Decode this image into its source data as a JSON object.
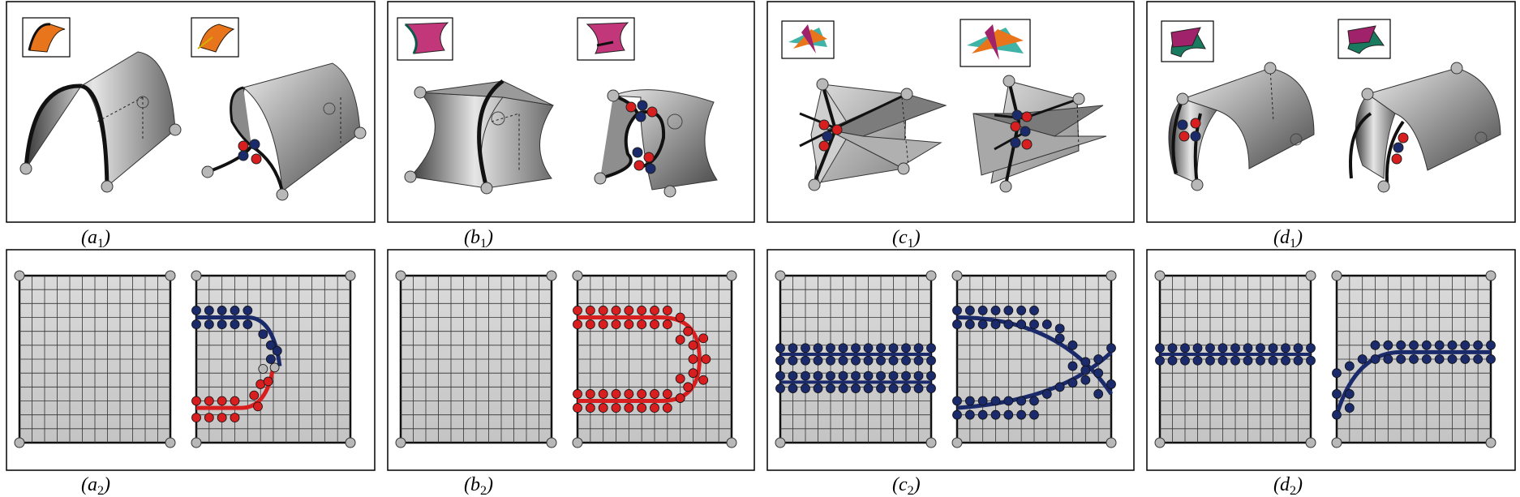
{
  "figure": {
    "columns": [
      {
        "id": "a",
        "top_label": "(a1)",
        "top_label_base": "a",
        "top_label_sub": "1",
        "bottom_label": "(a2)",
        "bottom_label_base": "a",
        "bottom_label_sub": "2",
        "inset_color": "#e8741c"
      },
      {
        "id": "b",
        "top_label": "(b1)",
        "top_label_base": "b",
        "top_label_sub": "1",
        "bottom_label": "(b2)",
        "bottom_label_base": "b",
        "bottom_label_sub": "2",
        "inset_color": "#c2367a"
      },
      {
        "id": "c",
        "top_label": "(c1)",
        "top_label_base": "c",
        "top_label_sub": "1",
        "bottom_label": "(c2)",
        "bottom_label_base": "c",
        "bottom_label_sub": "2",
        "inset_color": "#3fb3a6"
      },
      {
        "id": "d",
        "top_label": "(d1)",
        "top_label_base": "d",
        "top_label_sub": "1",
        "bottom_label": "(d2)",
        "bottom_label_base": "d",
        "bottom_label_sub": "2",
        "inset_color": "#a0226a"
      }
    ],
    "colors": {
      "crease_blue": "#1a2a6b",
      "crease_red": "#d81e1e",
      "grid_line": "#333333",
      "corner_node": "#b8b8b8"
    },
    "grid": {
      "divisions": 12
    }
  }
}
